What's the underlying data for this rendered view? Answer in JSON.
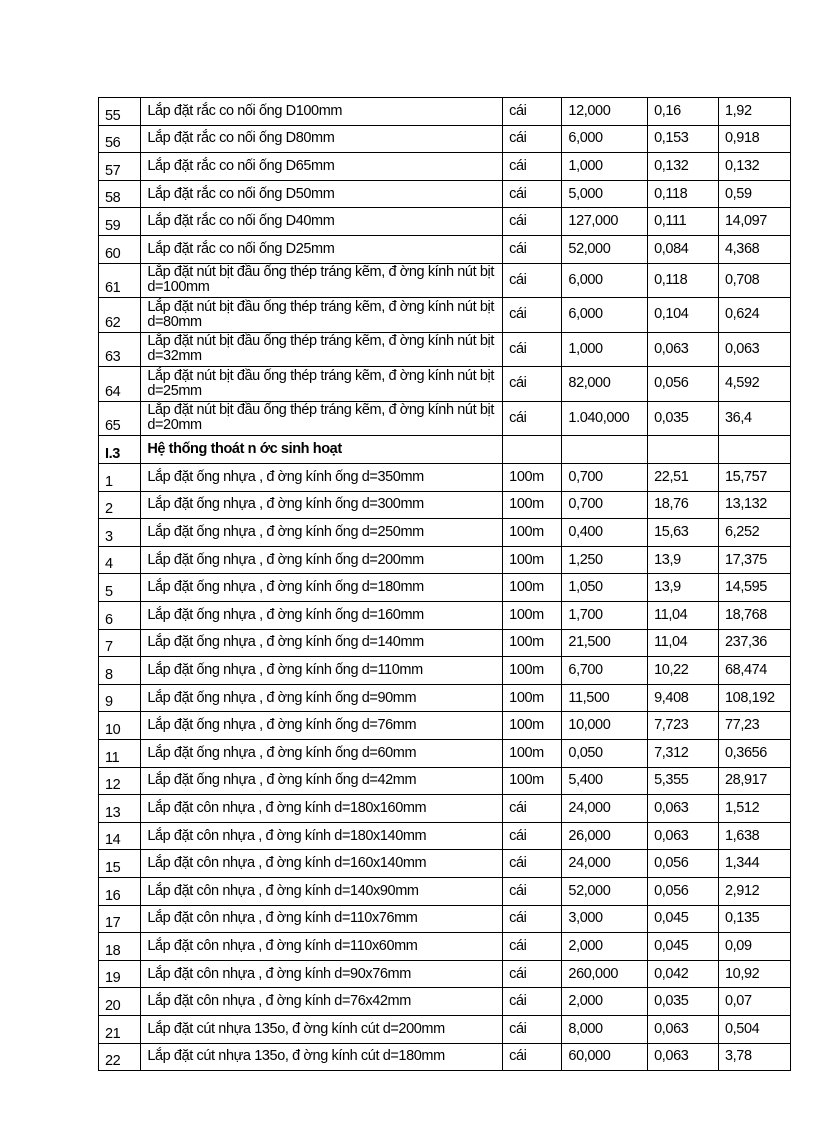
{
  "rows_top": [
    {
      "no": "55",
      "desc": "Lắp đặt rắc co nối ống D100mm",
      "unit": "cái",
      "qty": "12,000",
      "norm": "0,16",
      "total": "1,92"
    },
    {
      "no": "56",
      "desc": "Lắp đặt rắc co nối ống D80mm",
      "unit": "cái",
      "qty": "6,000",
      "norm": "0,153",
      "total": "0,918"
    },
    {
      "no": "57",
      "desc": "Lắp đặt rắc co nối ống D65mm",
      "unit": "cái",
      "qty": "1,000",
      "norm": "0,132",
      "total": "0,132"
    },
    {
      "no": "58",
      "desc": "Lắp đặt rắc co nối ống D50mm",
      "unit": "cái",
      "qty": "5,000",
      "norm": "0,118",
      "total": "0,59"
    },
    {
      "no": "59",
      "desc": "Lắp đặt rắc co nối ống D40mm",
      "unit": "cái",
      "qty": "127,000",
      "norm": "0,111",
      "total": "14,097"
    },
    {
      "no": "60",
      "desc": "Lắp đặt rắc co nối ống D25mm",
      "unit": "cái",
      "qty": "52,000",
      "norm": "0,084",
      "total": "4,368"
    },
    {
      "no": "61",
      "desc": "Lắp đặt nút bịt đầu ống thép tráng kẽm, đ   ờng kính nút bịt d=100mm",
      "unit": "cái",
      "qty": "6,000",
      "norm": "0,118",
      "total": "0,708",
      "tall": true
    },
    {
      "no": "62",
      "desc": "Lắp đặt nút bịt đầu ống thép tráng kẽm, đ   ờng kính nút bịt d=80mm",
      "unit": "cái",
      "qty": "6,000",
      "norm": "0,104",
      "total": "0,624",
      "tall": true
    },
    {
      "no": "63",
      "desc": "Lắp đặt nút bịt đầu ống thép tráng kẽm, đ   ờng kính nút bịt d=32mm",
      "unit": "cái",
      "qty": "1,000",
      "norm": "0,063",
      "total": "0,063",
      "tall": true
    },
    {
      "no": "64",
      "desc": "Lắp đặt nút bịt đầu ống thép tráng kẽm, đ   ờng kính nút bịt d=25mm",
      "unit": "cái",
      "qty": "82,000",
      "norm": "0,056",
      "total": "4,592",
      "tall": true
    },
    {
      "no": "65",
      "desc": "Lắp đặt nút bịt đầu ống thép tráng kẽm, đ   ờng kính nút bịt d=20mm",
      "unit": "cái",
      "qty": "1.040,000",
      "norm": "0,035",
      "total": "36,4",
      "tall": true
    }
  ],
  "section": {
    "no": "I.3",
    "title": "Hệ thống thoát n   ớc sinh hoạt"
  },
  "rows_bottom": [
    {
      "no": "1",
      "desc": "Lắp đặt ống nhựa , đ   ờng kính ống d=350mm",
      "unit": "100m",
      "qty": "0,700",
      "norm": "22,51",
      "total": "15,757"
    },
    {
      "no": "2",
      "desc": "Lắp đặt ống nhựa , đ   ờng kính ống d=300mm",
      "unit": "100m",
      "qty": "0,700",
      "norm": "18,76",
      "total": "13,132"
    },
    {
      "no": "3",
      "desc": "Lắp đặt ống nhựa , đ   ờng kính ống d=250mm",
      "unit": "100m",
      "qty": "0,400",
      "norm": "15,63",
      "total": "6,252"
    },
    {
      "no": "4",
      "desc": "Lắp đặt ống nhựa , đ   ờng kính ống d=200mm",
      "unit": "100m",
      "qty": "1,250",
      "norm": "13,9",
      "total": "17,375"
    },
    {
      "no": "5",
      "desc": "Lắp đặt ống nhựa , đ   ờng kính ống d=180mm",
      "unit": "100m",
      "qty": "1,050",
      "norm": "13,9",
      "total": "14,595"
    },
    {
      "no": "6",
      "desc": "Lắp đặt ống nhựa , đ   ờng kính ống d=160mm",
      "unit": "100m",
      "qty": "1,700",
      "norm": "11,04",
      "total": "18,768"
    },
    {
      "no": "7",
      "desc": "Lắp đặt ống nhựa , đ   ờng kính ống d=140mm",
      "unit": "100m",
      "qty": "21,500",
      "norm": "11,04",
      "total": "237,36"
    },
    {
      "no": "8",
      "desc": "Lắp đặt ống nhựa , đ   ờng kính ống d=110mm",
      "unit": "100m",
      "qty": "6,700",
      "norm": "10,22",
      "total": "68,474"
    },
    {
      "no": "9",
      "desc": "Lắp đặt ống nhựa , đ   ờng kính ống d=90mm",
      "unit": "100m",
      "qty": "11,500",
      "norm": "9,408",
      "total": "108,192"
    },
    {
      "no": "10",
      "desc": "Lắp đặt ống nhựa , đ   ờng kính ống d=76mm",
      "unit": "100m",
      "qty": "10,000",
      "norm": "7,723",
      "total": "77,23"
    },
    {
      "no": "11",
      "desc": "Lắp đặt ống nhựa , đ   ờng kính ống d=60mm",
      "unit": "100m",
      "qty": "0,050",
      "norm": "7,312",
      "total": "0,3656"
    },
    {
      "no": "12",
      "desc": "Lắp đặt ống nhựa , đ   ờng kính ống d=42mm",
      "unit": "100m",
      "qty": "5,400",
      "norm": "5,355",
      "total": "28,917"
    },
    {
      "no": "13",
      "desc": "Lắp đặt côn nhựa , đ   ờng kính d=180x160mm",
      "unit": "cái",
      "qty": "24,000",
      "norm": "0,063",
      "total": "1,512"
    },
    {
      "no": "14",
      "desc": "Lắp đặt côn nhựa , đ   ờng kính d=180x140mm",
      "unit": "cái",
      "qty": "26,000",
      "norm": "0,063",
      "total": "1,638"
    },
    {
      "no": "15",
      "desc": "Lắp đặt côn nhựa , đ   ờng kính d=160x140mm",
      "unit": "cái",
      "qty": "24,000",
      "norm": "0,056",
      "total": "1,344"
    },
    {
      "no": "16",
      "desc": "Lắp đặt côn nhựa , đ   ờng kính d=140x90mm",
      "unit": "cái",
      "qty": "52,000",
      "norm": "0,056",
      "total": "2,912"
    },
    {
      "no": "17",
      "desc": "Lắp đặt côn nhựa , đ   ờng kính d=110x76mm",
      "unit": "cái",
      "qty": "3,000",
      "norm": "0,045",
      "total": "0,135"
    },
    {
      "no": "18",
      "desc": "Lắp đặt côn nhựa , đ   ờng kính d=110x60mm",
      "unit": "cái",
      "qty": "2,000",
      "norm": "0,045",
      "total": "0,09"
    },
    {
      "no": "19",
      "desc": "Lắp đặt côn nhựa , đ   ờng kính d=90x76mm",
      "unit": "cái",
      "qty": "260,000",
      "norm": "0,042",
      "total": "10,92"
    },
    {
      "no": "20",
      "desc": "Lắp đặt côn nhựa , đ   ờng kính d=76x42mm",
      "unit": "cái",
      "qty": "2,000",
      "norm": "0,035",
      "total": "0,07"
    },
    {
      "no": "21",
      "desc": "Lắp đặt cút nhựa 135o, đ   ờng kính cút d=200mm",
      "unit": "cái",
      "qty": "8,000",
      "norm": "0,063",
      "total": "0,504"
    },
    {
      "no": "22",
      "desc": "Lắp đặt cút nhựa 135o, đ   ờng kính cút d=180mm",
      "unit": "cái",
      "qty": "60,000",
      "norm": "0,063",
      "total": "3,78"
    }
  ]
}
